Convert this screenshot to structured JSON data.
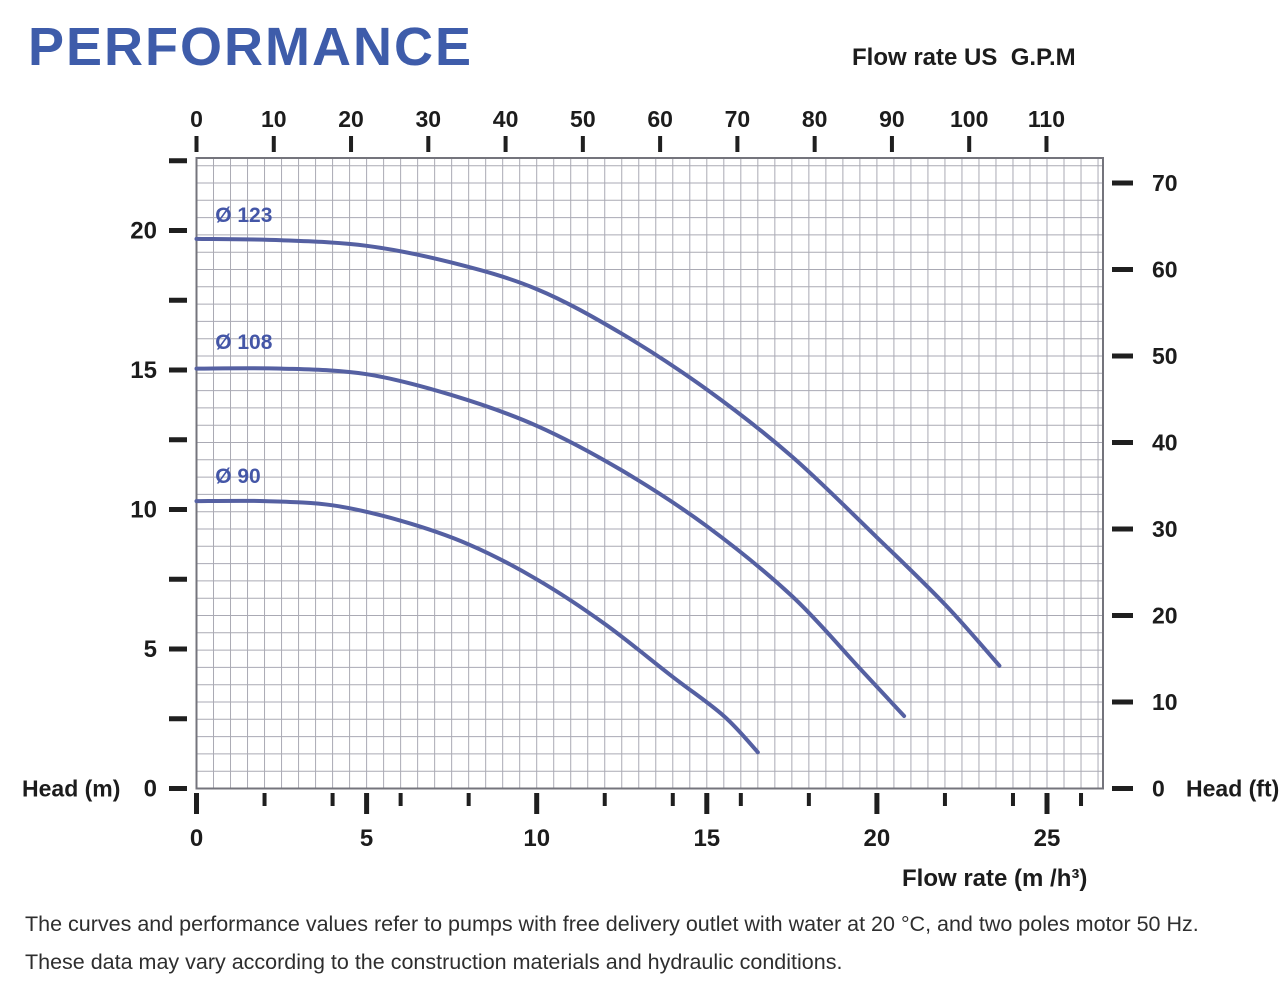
{
  "title": "PERFORMANCE",
  "footer": {
    "line1": "The curves and performance values refer to pumps with free delivery outlet with water at 20 °C, and two poles motor 50 Hz.",
    "line2": "These data may vary according to the construction materials and hydraulic conditions."
  },
  "chart_data": {
    "type": "line",
    "title": "PERFORMANCE",
    "axes": {
      "top": {
        "label": "Flow rate US  G.P.M",
        "ticks": [
          0,
          10,
          20,
          30,
          40,
          50,
          60,
          70,
          80,
          90,
          100,
          110
        ]
      },
      "bottom": {
        "label": "Flow rate  (m /h³)",
        "major_ticks": [
          0,
          5,
          10,
          15,
          20,
          25
        ],
        "minor_ticks": [
          2,
          4,
          6,
          8,
          12,
          14,
          16,
          18,
          22,
          24,
          26
        ],
        "range": [
          0,
          26.6
        ]
      },
      "left": {
        "label": "Head (m)",
        "labeled_ticks": [
          0,
          5,
          10,
          15,
          20
        ],
        "all_ticks": [
          0,
          2.5,
          5,
          7.5,
          10,
          12.5,
          15,
          17.5,
          20,
          22.5
        ],
        "range": [
          0,
          22.6
        ]
      },
      "right": {
        "label": "Head (ft)",
        "ticks": [
          0,
          10,
          20,
          30,
          40,
          50,
          60,
          70
        ],
        "range": [
          0,
          72.8
        ]
      }
    },
    "grid": {
      "x_step_m3h": 0.5,
      "y_step_ft": 2,
      "visible": true
    },
    "legend_position": "on-curve-labels",
    "series": [
      {
        "name": "Ø 123",
        "label_pos": [
          0.55,
          20.3
        ],
        "points": [
          [
            0,
            19.7
          ],
          [
            2.5,
            19.65
          ],
          [
            5,
            19.45
          ],
          [
            7.5,
            18.85
          ],
          [
            10,
            17.9
          ],
          [
            12.5,
            16.3
          ],
          [
            15,
            14.3
          ],
          [
            17.5,
            11.9
          ],
          [
            20,
            9.0
          ],
          [
            22,
            6.6
          ],
          [
            23.6,
            4.4
          ]
        ]
      },
      {
        "name": "Ø 108",
        "label_pos": [
          0.55,
          15.75
        ],
        "points": [
          [
            0,
            15.05
          ],
          [
            2.5,
            15.05
          ],
          [
            5,
            14.85
          ],
          [
            7.5,
            14.1
          ],
          [
            10,
            13.0
          ],
          [
            12.5,
            11.4
          ],
          [
            15,
            9.4
          ],
          [
            17.5,
            6.9
          ],
          [
            19.5,
            4.3
          ],
          [
            20.8,
            2.6
          ]
        ]
      },
      {
        "name": "Ø 90",
        "label_pos": [
          0.55,
          10.95
        ],
        "points": [
          [
            0,
            10.3
          ],
          [
            2,
            10.3
          ],
          [
            4,
            10.15
          ],
          [
            6,
            9.6
          ],
          [
            8,
            8.75
          ],
          [
            10,
            7.5
          ],
          [
            12,
            5.9
          ],
          [
            14,
            4.0
          ],
          [
            15.5,
            2.6
          ],
          [
            16.5,
            1.3
          ]
        ]
      }
    ],
    "colors": {
      "curve": "#5560a2",
      "curve_label": "#4456a7",
      "grid": "#aaaab4",
      "frame": "#74747c",
      "tick": "#1f1f1f",
      "text": "#1c1c1c",
      "title": "#3e5caa"
    }
  }
}
